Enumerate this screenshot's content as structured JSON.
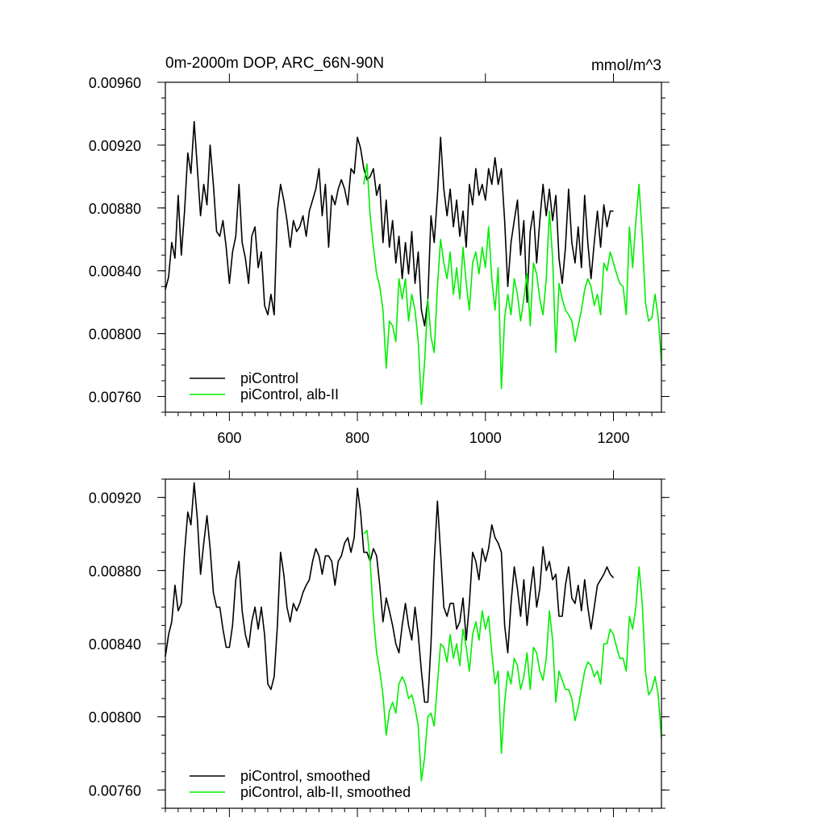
{
  "chart_data": [
    {
      "type": "line",
      "title": "0m-2000m DOP, ARC_66N-90N",
      "units": "mmol/m^3",
      "xlim": [
        500,
        1275
      ],
      "ylim": [
        0.0075,
        0.0096
      ],
      "xticks": [
        600,
        800,
        1000,
        1200
      ],
      "yticks": [
        0.0076,
        0.008,
        0.0084,
        0.0088,
        0.0092,
        0.0096
      ],
      "ytick_labels": [
        "0.00760",
        "0.00800",
        "0.00840",
        "0.00880",
        "0.00920",
        "0.00960"
      ],
      "grid": false,
      "legend_position": "bottom-left",
      "series": [
        {
          "name": "piControl",
          "color": "#000000",
          "x": [
            500,
            505,
            510,
            515,
            520,
            525,
            530,
            535,
            540,
            545,
            550,
            555,
            560,
            565,
            570,
            575,
            580,
            585,
            590,
            595,
            600,
            605,
            610,
            615,
            620,
            625,
            630,
            635,
            640,
            645,
            650,
            655,
            660,
            665,
            670,
            675,
            680,
            685,
            690,
            695,
            700,
            705,
            710,
            715,
            720,
            725,
            730,
            735,
            740,
            745,
            750,
            755,
            760,
            765,
            770,
            775,
            780,
            785,
            790,
            795,
            800,
            805,
            810,
            815,
            820,
            825,
            830,
            835,
            840,
            845,
            850,
            855,
            860,
            865,
            870,
            875,
            880,
            885,
            890,
            895,
            900,
            905,
            910,
            915,
            920,
            925,
            930,
            935,
            940,
            945,
            950,
            955,
            960,
            965,
            970,
            975,
            980,
            985,
            990,
            995,
            1000,
            1005,
            1010,
            1015,
            1020,
            1025,
            1030,
            1035,
            1040,
            1045,
            1050,
            1055,
            1060,
            1065,
            1070,
            1075,
            1080,
            1085,
            1090,
            1095,
            1100,
            1105,
            1110,
            1115,
            1120,
            1125,
            1130,
            1135,
            1140,
            1145,
            1150,
            1155,
            1160,
            1165,
            1170,
            1175,
            1180,
            1185,
            1190,
            1195,
            1200
          ],
          "y": [
            0.00828,
            0.00836,
            0.00858,
            0.00848,
            0.00888,
            0.0085,
            0.00878,
            0.00915,
            0.00902,
            0.00935,
            0.00905,
            0.00875,
            0.00895,
            0.00882,
            0.0092,
            0.00895,
            0.00865,
            0.00862,
            0.00872,
            0.00855,
            0.00832,
            0.00852,
            0.00862,
            0.00895,
            0.00858,
            0.00848,
            0.00832,
            0.00862,
            0.00868,
            0.00842,
            0.00852,
            0.00818,
            0.00812,
            0.00825,
            0.00812,
            0.00878,
            0.00895,
            0.00885,
            0.00872,
            0.00855,
            0.00872,
            0.00865,
            0.00868,
            0.00875,
            0.00862,
            0.00878,
            0.00885,
            0.00892,
            0.00905,
            0.00875,
            0.00895,
            0.00855,
            0.00888,
            0.00882,
            0.00892,
            0.00898,
            0.00892,
            0.00882,
            0.00905,
            0.00902,
            0.00925,
            0.00918,
            0.00905,
            0.00898,
            0.009,
            0.00905,
            0.00888,
            0.00895,
            0.00858,
            0.00885,
            0.00855,
            0.00872,
            0.00845,
            0.00862,
            0.00835,
            0.00858,
            0.00838,
            0.00865,
            0.00832,
            0.00852,
            0.00815,
            0.00805,
            0.00822,
            0.00875,
            0.00858,
            0.00888,
            0.00925,
            0.00892,
            0.00875,
            0.00892,
            0.00868,
            0.00885,
            0.00862,
            0.00878,
            0.00855,
            0.00895,
            0.00882,
            0.00905,
            0.00888,
            0.00895,
            0.00885,
            0.00905,
            0.00895,
            0.00912,
            0.00895,
            0.00905,
            0.00872,
            0.0083,
            0.00858,
            0.00872,
            0.00885,
            0.0085,
            0.00872,
            0.0082,
            0.00865,
            0.00878,
            0.00845,
            0.00872,
            0.00895,
            0.00875,
            0.00892,
            0.00872,
            0.00888,
            0.00848,
            0.00832,
            0.00855,
            0.00892,
            0.00858,
            0.00845,
            0.00868,
            0.00842,
            0.00888,
            0.00858,
            0.00835,
            0.00858,
            0.00878,
            0.00855,
            0.00882,
            0.00868,
            0.00878,
            0.00878
          ]
        },
        {
          "name": "piControl, alb-II",
          "color": "#00ee00",
          "x": [
            810,
            815,
            820,
            825,
            830,
            835,
            840,
            845,
            850,
            855,
            860,
            865,
            870,
            875,
            880,
            885,
            890,
            895,
            900,
            905,
            910,
            915,
            920,
            925,
            930,
            935,
            940,
            945,
            950,
            955,
            960,
            965,
            970,
            975,
            980,
            985,
            990,
            995,
            1000,
            1005,
            1010,
            1015,
            1020,
            1025,
            1030,
            1035,
            1040,
            1045,
            1050,
            1055,
            1060,
            1065,
            1070,
            1075,
            1080,
            1085,
            1090,
            1095,
            1100,
            1105,
            1110,
            1115,
            1120,
            1125,
            1130,
            1135,
            1140,
            1145,
            1150,
            1155,
            1160,
            1165,
            1170,
            1175,
            1180,
            1185,
            1190,
            1195,
            1200,
            1205,
            1210,
            1215,
            1220,
            1225,
            1230,
            1235,
            1240,
            1245,
            1250,
            1255,
            1260,
            1265,
            1270,
            1275
          ],
          "y": [
            0.00895,
            0.00908,
            0.00875,
            0.00855,
            0.00838,
            0.0083,
            0.00815,
            0.00778,
            0.00808,
            0.00805,
            0.00795,
            0.00835,
            0.00822,
            0.00835,
            0.00808,
            0.00825,
            0.00815,
            0.00795,
            0.00755,
            0.00782,
            0.00822,
            0.00798,
            0.00788,
            0.0083,
            0.0086,
            0.00845,
            0.00835,
            0.00852,
            0.00825,
            0.00842,
            0.00822,
            0.00855,
            0.00832,
            0.00815,
            0.00845,
            0.00852,
            0.00838,
            0.00855,
            0.00842,
            0.00868,
            0.00835,
            0.00815,
            0.00842,
            0.00765,
            0.0081,
            0.00825,
            0.00812,
            0.00835,
            0.00825,
            0.00808,
            0.00822,
            0.00838,
            0.00805,
            0.00845,
            0.00838,
            0.00822,
            0.00812,
            0.00835,
            0.00878,
            0.00848,
            0.00788,
            0.00832,
            0.00822,
            0.00815,
            0.00812,
            0.00808,
            0.00795,
            0.00805,
            0.00815,
            0.00828,
            0.00835,
            0.0083,
            0.00818,
            0.00825,
            0.00812,
            0.00845,
            0.0084,
            0.00852,
            0.00845,
            0.00838,
            0.00832,
            0.0083,
            0.00812,
            0.00868,
            0.00842,
            0.00872,
            0.00895,
            0.00862,
            0.0082,
            0.00808,
            0.0081,
            0.00825,
            0.0081,
            0.00782
          ]
        }
      ]
    },
    {
      "type": "line",
      "title": "",
      "xlim": [
        500,
        1275
      ],
      "ylim": [
        0.0075,
        0.0093
      ],
      "xticks": [
        600,
        800,
        1000,
        1200
      ],
      "yticks": [
        0.0076,
        0.008,
        0.0084,
        0.0088,
        0.0092
      ],
      "ytick_labels": [
        "0.00760",
        "0.00800",
        "0.00840",
        "0.00880",
        "0.00920"
      ],
      "grid": false,
      "legend_position": "bottom-left",
      "series": [
        {
          "name": "piControl, smoothed",
          "color": "#000000",
          "x": [
            500,
            505,
            510,
            515,
            520,
            525,
            530,
            535,
            540,
            545,
            550,
            555,
            560,
            565,
            570,
            575,
            580,
            585,
            590,
            595,
            600,
            605,
            610,
            615,
            620,
            625,
            630,
            635,
            640,
            645,
            650,
            655,
            660,
            665,
            670,
            675,
            680,
            685,
            690,
            695,
            700,
            705,
            710,
            715,
            720,
            725,
            730,
            735,
            740,
            745,
            750,
            755,
            760,
            765,
            770,
            775,
            780,
            785,
            790,
            795,
            800,
            805,
            810,
            815,
            820,
            825,
            830,
            835,
            840,
            845,
            850,
            855,
            860,
            865,
            870,
            875,
            880,
            885,
            890,
            895,
            900,
            905,
            910,
            915,
            920,
            925,
            930,
            935,
            940,
            945,
            950,
            955,
            960,
            965,
            970,
            975,
            980,
            985,
            990,
            995,
            1000,
            1005,
            1010,
            1015,
            1020,
            1025,
            1030,
            1035,
            1040,
            1045,
            1050,
            1055,
            1060,
            1065,
            1070,
            1075,
            1080,
            1085,
            1090,
            1095,
            1100,
            1105,
            1110,
            1115,
            1120,
            1125,
            1130,
            1135,
            1140,
            1145,
            1150,
            1155,
            1160,
            1165,
            1170,
            1175,
            1180,
            1185,
            1190,
            1195,
            1200
          ],
          "y": [
            0.00833,
            0.00845,
            0.00852,
            0.00872,
            0.00858,
            0.00862,
            0.0089,
            0.00912,
            0.00905,
            0.00928,
            0.00908,
            0.00878,
            0.00895,
            0.0091,
            0.00892,
            0.00868,
            0.0086,
            0.0086,
            0.00848,
            0.00838,
            0.00838,
            0.0085,
            0.00875,
            0.00885,
            0.00858,
            0.00845,
            0.00838,
            0.00852,
            0.0086,
            0.00848,
            0.0086,
            0.00845,
            0.00818,
            0.00815,
            0.00822,
            0.0085,
            0.0089,
            0.00878,
            0.0086,
            0.00852,
            0.00862,
            0.00858,
            0.00862,
            0.00868,
            0.00872,
            0.00875,
            0.00885,
            0.00892,
            0.00888,
            0.00878,
            0.00888,
            0.00888,
            0.00885,
            0.00872,
            0.00885,
            0.00888,
            0.00895,
            0.00898,
            0.0089,
            0.00898,
            0.00925,
            0.00912,
            0.0089,
            0.0089,
            0.00885,
            0.00892,
            0.00888,
            0.00872,
            0.00852,
            0.00865,
            0.00858,
            0.0085,
            0.0084,
            0.00835,
            0.0085,
            0.00862,
            0.0085,
            0.00842,
            0.0086,
            0.00845,
            0.00825,
            0.00808,
            0.00808,
            0.0084,
            0.00885,
            0.00918,
            0.0089,
            0.0086,
            0.00855,
            0.00862,
            0.00862,
            0.00848,
            0.00852,
            0.00865,
            0.00842,
            0.00862,
            0.0089,
            0.00885,
            0.00875,
            0.00892,
            0.00885,
            0.00892,
            0.00905,
            0.00898,
            0.00895,
            0.0089,
            0.0085,
            0.00835,
            0.00862,
            0.00882,
            0.0087,
            0.00855,
            0.00875,
            0.0085,
            0.00868,
            0.00882,
            0.0086,
            0.0087,
            0.00893,
            0.0088,
            0.00885,
            0.00875,
            0.00878,
            0.00855,
            0.00855,
            0.00872,
            0.00882,
            0.00865,
            0.00862,
            0.00872,
            0.00858,
            0.00875,
            0.0086,
            0.00848,
            0.0086,
            0.00872,
            0.00875,
            0.00878,
            0.00882,
            0.00878,
            0.00876
          ]
        },
        {
          "name": "piControl, alb-II, smoothed",
          "color": "#00ee00",
          "x": [
            810,
            815,
            820,
            825,
            830,
            835,
            840,
            845,
            850,
            855,
            860,
            865,
            870,
            875,
            880,
            885,
            890,
            895,
            900,
            905,
            910,
            915,
            920,
            925,
            930,
            935,
            940,
            945,
            950,
            955,
            960,
            965,
            970,
            975,
            980,
            985,
            990,
            995,
            1000,
            1005,
            1010,
            1015,
            1020,
            1025,
            1030,
            1035,
            1040,
            1045,
            1050,
            1055,
            1060,
            1065,
            1070,
            1075,
            1080,
            1085,
            1090,
            1095,
            1100,
            1105,
            1110,
            1115,
            1120,
            1125,
            1130,
            1135,
            1140,
            1145,
            1150,
            1155,
            1160,
            1165,
            1170,
            1175,
            1180,
            1185,
            1190,
            1195,
            1200,
            1205,
            1210,
            1215,
            1220,
            1225,
            1230,
            1235,
            1240,
            1245,
            1250,
            1255,
            1260,
            1265,
            1270,
            1275
          ],
          "y": [
            0.009,
            0.00902,
            0.00885,
            0.00855,
            0.00835,
            0.00825,
            0.00812,
            0.0079,
            0.00803,
            0.00808,
            0.00802,
            0.00818,
            0.00822,
            0.00818,
            0.0081,
            0.00812,
            0.00805,
            0.00795,
            0.00765,
            0.00778,
            0.008,
            0.00802,
            0.00795,
            0.00818,
            0.0084,
            0.00838,
            0.0083,
            0.00845,
            0.00832,
            0.0084,
            0.00828,
            0.00848,
            0.00838,
            0.00825,
            0.00845,
            0.00852,
            0.00842,
            0.00858,
            0.00848,
            0.00855,
            0.00835,
            0.00818,
            0.00825,
            0.0078,
            0.00808,
            0.00825,
            0.00818,
            0.00832,
            0.00828,
            0.00815,
            0.00822,
            0.00835,
            0.00815,
            0.00838,
            0.00835,
            0.00825,
            0.0082,
            0.00832,
            0.00858,
            0.00842,
            0.00808,
            0.00825,
            0.0082,
            0.00815,
            0.00815,
            0.0081,
            0.00798,
            0.00805,
            0.00815,
            0.00825,
            0.0083,
            0.00828,
            0.00822,
            0.00825,
            0.00818,
            0.0084,
            0.0084,
            0.00848,
            0.00845,
            0.00838,
            0.00832,
            0.00832,
            0.00825,
            0.00855,
            0.00848,
            0.0086,
            0.00882,
            0.00862,
            0.00825,
            0.00812,
            0.00815,
            0.00822,
            0.00812,
            0.00788
          ]
        }
      ]
    }
  ]
}
